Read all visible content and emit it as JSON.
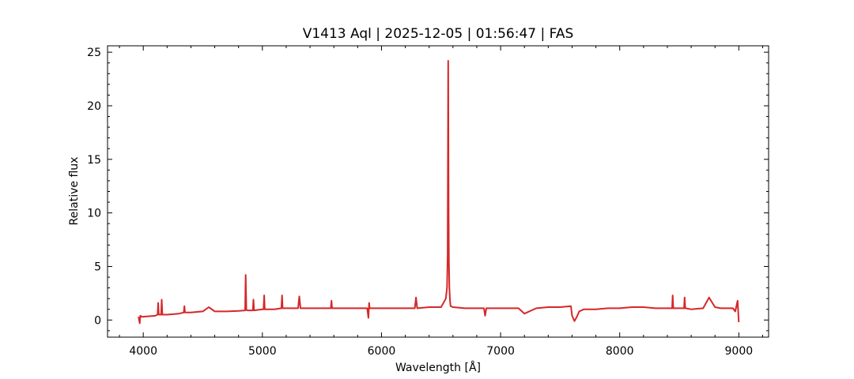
{
  "chart_data": {
    "type": "line",
    "title": "V1413 Aql | 2025-12-05 | 01:56:47 | FAS",
    "xlabel": "Wavelength [Å]",
    "ylabel": "Relative flux",
    "xlim": [
      3700,
      9250
    ],
    "ylim": [
      -1.6,
      25.6
    ],
    "xticks": [
      4000,
      5000,
      6000,
      7000,
      8000,
      9000
    ],
    "yticks": [
      0,
      5,
      10,
      15,
      20,
      25
    ],
    "line_color": "#d62728",
    "grid": false,
    "tick_direction": "in",
    "series": [
      {
        "x": [
          3960,
          3970,
          3975,
          3990,
          4050,
          4100,
          4120,
          4125,
          4130,
          4150,
          4155,
          4160,
          4200,
          4300,
          4340,
          4345,
          4350,
          4400,
          4500,
          4550,
          4600,
          4700,
          4800,
          4855,
          4860,
          4865,
          4870,
          4900,
          4920,
          4925,
          4930,
          5000,
          5010,
          5015,
          5020,
          5100,
          5160,
          5165,
          5170,
          5200,
          5270,
          5300,
          5310,
          5320,
          5400,
          5500,
          5575,
          5580,
          5585,
          5700,
          5800,
          5880,
          5890,
          5896,
          5900,
          5950,
          6000,
          6100,
          6200,
          6280,
          6290,
          6300,
          6400,
          6500,
          6540,
          6550,
          6555,
          6560,
          6563,
          6566,
          6570,
          6575,
          6580,
          6600,
          6700,
          6800,
          6860,
          6870,
          6880,
          7000,
          7150,
          7200,
          7300,
          7400,
          7500,
          7590,
          7600,
          7620,
          7640,
          7660,
          7700,
          7800,
          7900,
          8000,
          8100,
          8200,
          8300,
          8400,
          8440,
          8445,
          8450,
          8500,
          8540,
          8545,
          8550,
          8600,
          8700,
          8750,
          8800,
          8850,
          8900,
          8950,
          8970,
          8990,
          9000
        ],
        "y": [
          0.3,
          -0.3,
          0.4,
          0.3,
          0.35,
          0.4,
          0.5,
          1.6,
          0.5,
          0.5,
          1.9,
          0.5,
          0.5,
          0.6,
          0.7,
          1.3,
          0.7,
          0.7,
          0.8,
          1.2,
          0.8,
          0.8,
          0.85,
          0.9,
          4.2,
          1.0,
          0.9,
          0.9,
          0.9,
          1.9,
          0.9,
          1.0,
          1.0,
          2.3,
          1.0,
          1.0,
          1.1,
          2.3,
          1.1,
          1.1,
          1.1,
          1.1,
          2.2,
          1.1,
          1.1,
          1.1,
          1.1,
          1.8,
          1.1,
          1.1,
          1.1,
          1.1,
          0.2,
          1.6,
          1.1,
          1.1,
          1.1,
          1.1,
          1.1,
          1.1,
          2.1,
          1.1,
          1.2,
          1.2,
          2.0,
          3.0,
          6.0,
          24.2,
          10.5,
          5.5,
          3.0,
          1.8,
          1.3,
          1.2,
          1.1,
          1.1,
          1.1,
          0.4,
          1.1,
          1.1,
          1.1,
          0.6,
          1.1,
          1.2,
          1.2,
          1.3,
          0.4,
          -0.1,
          0.3,
          0.8,
          1.0,
          1.0,
          1.1,
          1.1,
          1.2,
          1.2,
          1.1,
          1.1,
          1.1,
          2.3,
          1.1,
          1.1,
          1.1,
          2.1,
          1.1,
          1.0,
          1.1,
          2.1,
          1.2,
          1.1,
          1.1,
          1.1,
          0.8,
          1.8,
          -0.2
        ]
      }
    ]
  }
}
